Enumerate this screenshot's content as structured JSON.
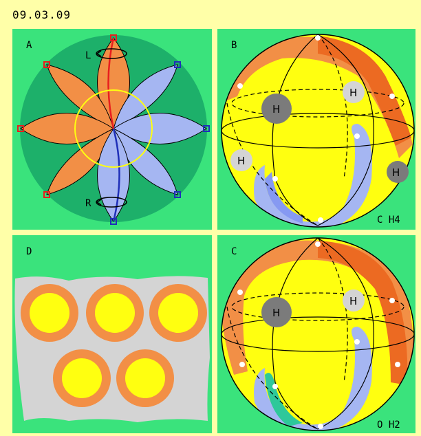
{
  "header": {
    "date": "09.03.09"
  },
  "panels": [
    {
      "id": "A",
      "letter": "A",
      "axis_top": "L",
      "axis_bottom": "R"
    },
    {
      "id": "B",
      "letter": "B",
      "caption": "C H4",
      "h_labels": [
        "H",
        "H",
        "H",
        "H"
      ]
    },
    {
      "id": "D",
      "letter": "D"
    },
    {
      "id": "C",
      "letter": "C",
      "caption": "O H2",
      "h_labels": [
        "H",
        "H"
      ]
    }
  ],
  "colors": {
    "background": "#ffffa8",
    "panel": "#3ae37c",
    "dark_green": "#1db06a",
    "orange": "#f28f46",
    "dark_orange": "#ec6a22",
    "lavender": "#a5b6f2",
    "blue": "#8699f2",
    "yellow": "#ffff10",
    "gray": "#d4d4d4",
    "dark_gray": "#7b7b7b",
    "red": "#e81e1e",
    "navy": "#1f2fb8"
  }
}
